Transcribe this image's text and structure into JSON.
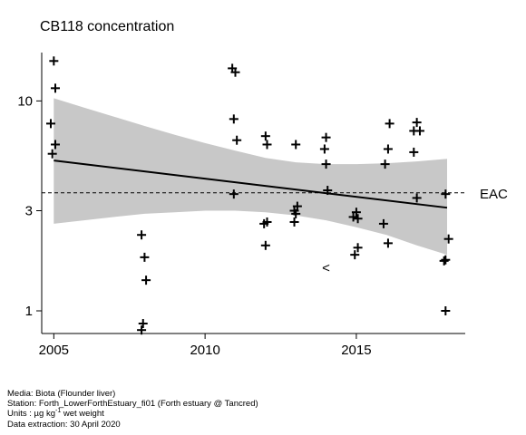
{
  "chart_data": {
    "type": "scatter",
    "title": "CB118 concentration",
    "y_scale": "log",
    "xlim": [
      2004.6,
      2018.6
    ],
    "ylim": [
      0.78,
      17.0
    ],
    "x_ticks": [
      2005,
      2010,
      2015
    ],
    "y_ticks": [
      1,
      3,
      10
    ],
    "grid": false,
    "legend": "none",
    "points": [
      {
        "x": 2005.0,
        "y": 15.5
      },
      {
        "x": 2005.05,
        "y": 11.5
      },
      {
        "x": 2004.9,
        "y": 7.8
      },
      {
        "x": 2005.05,
        "y": 6.2
      },
      {
        "x": 2004.95,
        "y": 5.6
      },
      {
        "x": 2007.9,
        "y": 2.3
      },
      {
        "x": 2008.0,
        "y": 1.8
      },
      {
        "x": 2008.05,
        "y": 1.4
      },
      {
        "x": 2007.95,
        "y": 0.87
      },
      {
        "x": 2007.9,
        "y": 0.81
      },
      {
        "x": 2010.9,
        "y": 14.3
      },
      {
        "x": 2011.0,
        "y": 13.7
      },
      {
        "x": 2010.95,
        "y": 8.2
      },
      {
        "x": 2011.05,
        "y": 6.5
      },
      {
        "x": 2010.95,
        "y": 3.6
      },
      {
        "x": 2012.0,
        "y": 6.8
      },
      {
        "x": 2012.05,
        "y": 6.2
      },
      {
        "x": 2012.05,
        "y": 2.65
      },
      {
        "x": 2011.95,
        "y": 2.6
      },
      {
        "x": 2012.0,
        "y": 2.05
      },
      {
        "x": 2013.0,
        "y": 6.2
      },
      {
        "x": 2013.05,
        "y": 3.15
      },
      {
        "x": 2012.95,
        "y": 3.0
      },
      {
        "x": 2013.0,
        "y": 2.9
      },
      {
        "x": 2012.95,
        "y": 2.65
      },
      {
        "x": 2014.0,
        "y": 6.7
      },
      {
        "x": 2013.95,
        "y": 5.9
      },
      {
        "x": 2014.0,
        "y": 5.0
      },
      {
        "x": 2014.05,
        "y": 3.75
      },
      {
        "x": 2014.9,
        "y": 2.8
      },
      {
        "x": 2015.0,
        "y": 2.95
      },
      {
        "x": 2015.05,
        "y": 2.75
      },
      {
        "x": 2015.05,
        "y": 2.0
      },
      {
        "x": 2014.95,
        "y": 1.85
      },
      {
        "x": 2016.1,
        "y": 7.8
      },
      {
        "x": 2016.05,
        "y": 5.9
      },
      {
        "x": 2015.95,
        "y": 5.0
      },
      {
        "x": 2015.9,
        "y": 2.6
      },
      {
        "x": 2016.05,
        "y": 2.1
      },
      {
        "x": 2017.0,
        "y": 7.9
      },
      {
        "x": 2016.9,
        "y": 7.2
      },
      {
        "x": 2017.1,
        "y": 7.2
      },
      {
        "x": 2016.9,
        "y": 5.7
      },
      {
        "x": 2017.0,
        "y": 3.45
      },
      {
        "x": 2017.95,
        "y": 3.6
      },
      {
        "x": 2018.05,
        "y": 2.2
      },
      {
        "x": 2017.95,
        "y": 1.75
      },
      {
        "x": 2017.9,
        "y": 1.73
      },
      {
        "x": 2017.95,
        "y": 1.0
      }
    ],
    "less_than_points": [
      {
        "x": 2014.0,
        "y": 1.6,
        "symbol": "<"
      }
    ],
    "trend_line": [
      {
        "x": 2005,
        "y": 5.2
      },
      {
        "x": 2018,
        "y": 3.1
      }
    ],
    "confidence_band": {
      "x": [
        2005,
        2006,
        2007,
        2008,
        2009,
        2010,
        2011,
        2012,
        2013,
        2014,
        2015,
        2016,
        2017,
        2018
      ],
      "upper": [
        10.3,
        9.3,
        8.4,
        7.6,
        6.9,
        6.3,
        5.8,
        5.35,
        5.1,
        5.0,
        5.0,
        5.05,
        5.15,
        5.3
      ],
      "lower": [
        2.6,
        2.7,
        2.8,
        2.9,
        2.95,
        3.0,
        3.0,
        2.95,
        2.85,
        2.7,
        2.5,
        2.3,
        2.05,
        1.85
      ]
    },
    "reference_line": {
      "label": "EAC",
      "y": 3.65,
      "style": "dashed"
    }
  },
  "footer": {
    "media": "Media: Biota (Flounder liver)",
    "station": "Station: Forth_LowerForthEstuary_fi01 (Forth estuary @ Tancred)",
    "units_prefix": "Units : µg kg",
    "units_sup": "-1",
    "units_suffix": " wet weight",
    "extraction": "Data extraction: 30 April 2020"
  }
}
